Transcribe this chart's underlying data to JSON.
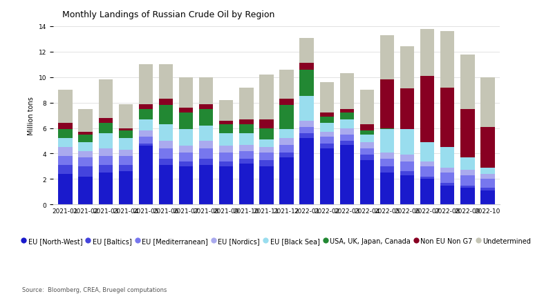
{
  "title": "Monthly Landings of Russian Crude Oil by Region",
  "ylabel": "Million tons",
  "source": "Source:  Bloomberg, CREA, Bruegel computations",
  "months": [
    "2021-01",
    "2021-02",
    "2021-03",
    "2021-04",
    "2021-05",
    "2021-06",
    "2021-07",
    "2021-08",
    "2021-09",
    "2021-10",
    "2021-11",
    "2021-12",
    "2022-01",
    "2022-02",
    "2022-03",
    "2022-04",
    "2022-05",
    "2022-06",
    "2022-07",
    "2022-08",
    "2022-09",
    "2022-10"
  ],
  "series": {
    "EU [North-West]": {
      "color": "#1a1acc",
      "values": [
        2.4,
        2.2,
        2.5,
        2.6,
        4.6,
        3.1,
        3.0,
        3.1,
        3.0,
        3.2,
        3.0,
        3.7,
        5.2,
        4.4,
        4.7,
        3.5,
        2.5,
        2.3,
        2.0,
        1.5,
        1.3,
        1.1
      ]
    },
    "EU [Baltics]": {
      "color": "#4444dd",
      "values": [
        0.7,
        0.8,
        0.6,
        0.5,
        0.2,
        0.5,
        0.4,
        0.5,
        0.4,
        0.4,
        0.5,
        0.4,
        0.4,
        0.4,
        0.3,
        0.4,
        0.5,
        0.3,
        0.2,
        0.2,
        0.2,
        0.2
      ]
    },
    "EU [Mediterranean]": {
      "color": "#7777ee",
      "values": [
        0.7,
        0.7,
        0.7,
        0.7,
        0.5,
        0.8,
        0.7,
        0.8,
        0.7,
        0.6,
        0.6,
        0.6,
        0.5,
        0.5,
        0.5,
        0.5,
        0.6,
        0.8,
        0.8,
        0.8,
        0.8,
        0.7
      ]
    },
    "EU [Nordics]": {
      "color": "#aaaaee",
      "values": [
        0.7,
        0.5,
        0.6,
        0.5,
        0.5,
        0.6,
        0.5,
        0.6,
        0.5,
        0.5,
        0.4,
        0.5,
        0.5,
        0.4,
        0.5,
        0.5,
        0.5,
        0.5,
        0.4,
        0.4,
        0.4,
        0.4
      ]
    },
    "EU [Black Sea]": {
      "color": "#99ddee",
      "values": [
        0.7,
        0.7,
        1.2,
        0.9,
        0.9,
        1.3,
        1.3,
        1.2,
        1.0,
        0.9,
        0.6,
        0.7,
        1.9,
        0.7,
        0.7,
        0.6,
        1.8,
        2.0,
        1.5,
        1.6,
        1.0,
        0.5
      ]
    },
    "USA, UK, Japan, Canada": {
      "color": "#228833",
      "values": [
        0.7,
        0.6,
        0.8,
        0.6,
        0.8,
        1.5,
        1.3,
        1.3,
        0.7,
        0.7,
        0.9,
        1.9,
        2.1,
        0.5,
        0.5,
        0.3,
        0.1,
        0.0,
        0.0,
        0.0,
        0.0,
        0.0
      ]
    },
    "Non EU Non G7": {
      "color": "#880022",
      "values": [
        0.5,
        0.2,
        0.4,
        0.2,
        0.4,
        0.5,
        0.4,
        0.4,
        0.3,
        0.4,
        0.7,
        0.5,
        0.5,
        0.3,
        0.3,
        0.5,
        3.8,
        3.2,
        5.2,
        4.7,
        3.8,
        3.2
      ]
    },
    "Undetermined": {
      "color": "#c5c5b5",
      "values": [
        2.6,
        1.8,
        3.0,
        1.9,
        3.1,
        2.7,
        2.4,
        2.1,
        1.6,
        2.5,
        3.5,
        2.3,
        2.0,
        2.4,
        2.8,
        2.7,
        3.5,
        3.3,
        3.7,
        4.4,
        4.3,
        3.9
      ]
    }
  },
  "ylim": [
    0,
    14
  ],
  "yticks": [
    0,
    2,
    4,
    6,
    8,
    10,
    12,
    14
  ],
  "background_color": "#ffffff",
  "title_fontsize": 9,
  "label_fontsize": 7,
  "tick_fontsize": 6.5,
  "legend_fontsize": 7
}
